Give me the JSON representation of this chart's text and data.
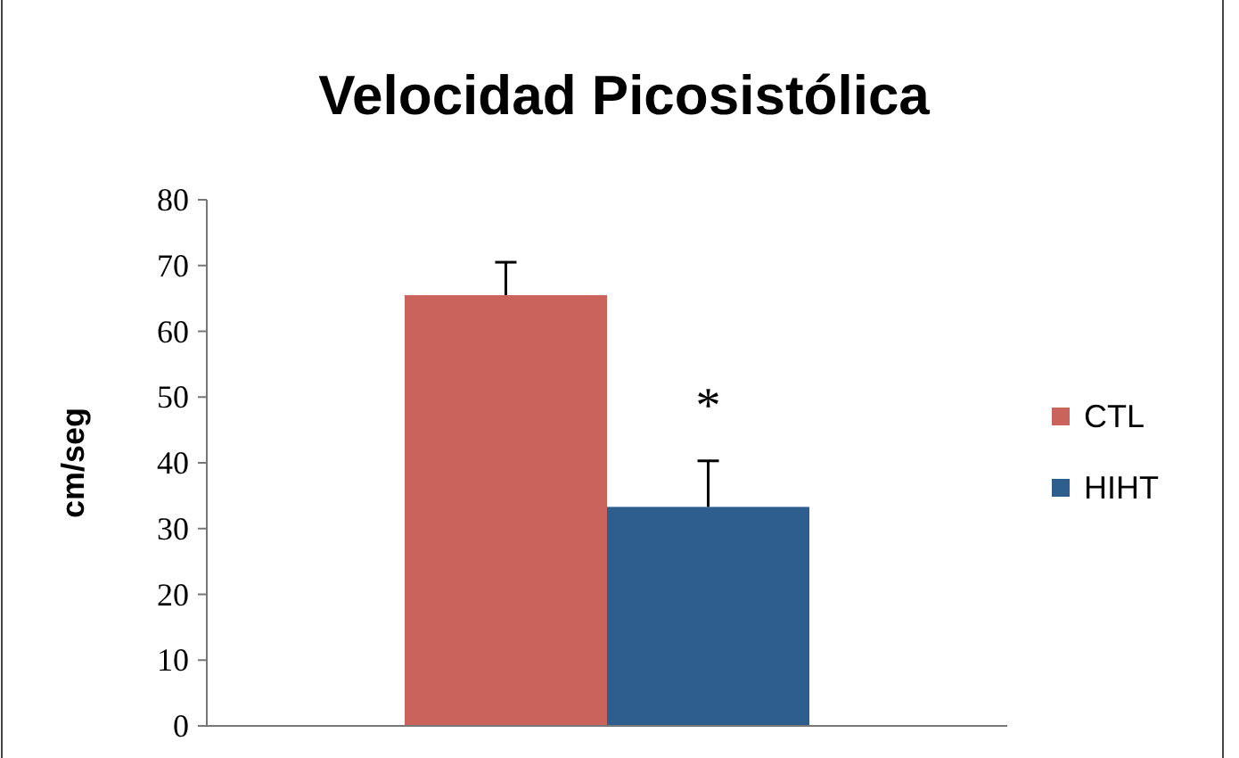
{
  "chart_data": {
    "type": "bar",
    "title": "Velocidad Picosistólica",
    "ylabel": "cm/seg",
    "categories": [
      null
    ],
    "series": [
      {
        "name": "CTL",
        "color": "#c9635b",
        "values": [
          65.5
        ],
        "errors": [
          [
            65.5,
            70.5
          ]
        ]
      },
      {
        "name": "HIHT",
        "color": "#2d5e8e",
        "values": [
          33.3
        ],
        "errors": [
          [
            33.3,
            40.3
          ]
        ]
      }
    ],
    "ylim": [
      0,
      80
    ],
    "yticks": [
      0,
      10,
      20,
      30,
      40,
      50,
      60,
      70,
      80
    ],
    "grid": false,
    "legend": "right",
    "annotations": [
      "*"
    ]
  }
}
